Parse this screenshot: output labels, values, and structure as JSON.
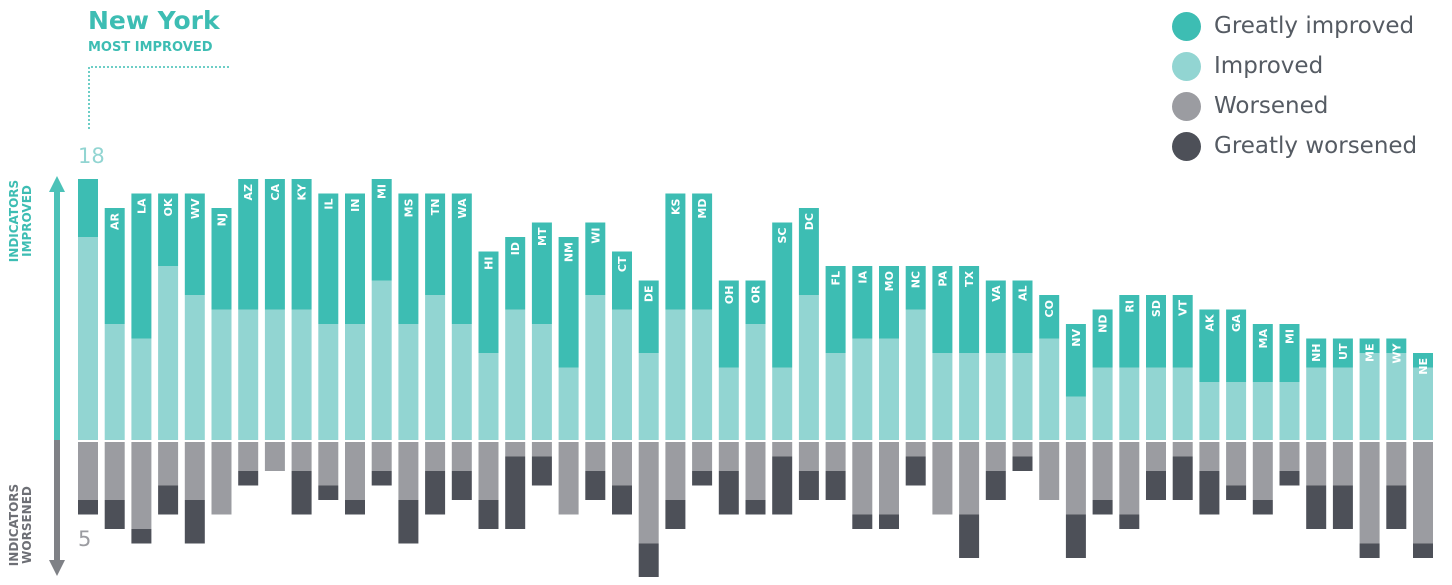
{
  "callout": {
    "name": "New York",
    "subtitle": "MOST IMPROVED"
  },
  "axis": {
    "improved_label": "INDICATORS IMPROVED",
    "worsened_label": "INDICATORS WORSENED",
    "max_improved_label": "18",
    "max_worsened_label": "5"
  },
  "legend": [
    {
      "label": "Greatly improved",
      "color": "#3dbdb3"
    },
    {
      "label": "Improved",
      "color": "#92d5d2"
    },
    {
      "label": "Worsened",
      "color": "#9b9ca1"
    },
    {
      "label": "Greatly worsened",
      "color": "#4d5058"
    }
  ],
  "colors": {
    "greatly_improved": "#3dbdb3",
    "improved": "#92d5d2",
    "worsened": "#9b9ca1",
    "greatly_worsened": "#4d5058",
    "improved_axis": "#4cc2b8",
    "worsened_axis": "#7f8186"
  },
  "chart_data": {
    "type": "bar",
    "stacked": true,
    "units": "indicators",
    "series": [
      {
        "name": "Greatly improved",
        "values": [
          4,
          8,
          10,
          5,
          7,
          7,
          9,
          9,
          9,
          9,
          9,
          7,
          9,
          7,
          9,
          7,
          5,
          7,
          9,
          5,
          4,
          5,
          8,
          8,
          6,
          3,
          10,
          6,
          6,
          5,
          5,
          3,
          6,
          6,
          5,
          5,
          3,
          5,
          4,
          5,
          5,
          5,
          5,
          5,
          4,
          4,
          2,
          2,
          1
        ]
      },
      {
        "name": "Improved",
        "values": [
          14,
          8,
          7,
          12,
          10,
          9,
          9,
          9,
          9,
          8,
          8,
          11,
          8,
          10,
          8,
          6,
          9,
          8,
          5,
          10,
          9,
          6,
          9,
          9,
          5,
          8,
          5,
          10,
          6,
          7,
          7,
          9,
          6,
          6,
          6,
          6,
          7,
          3,
          5,
          5,
          5,
          5,
          4,
          4,
          4,
          4,
          5,
          5,
          6
        ]
      },
      {
        "name": "Worsened",
        "values": [
          4,
          4,
          6,
          3,
          4,
          5,
          2,
          2,
          2,
          3,
          4,
          2,
          4,
          2,
          2,
          4,
          1,
          1,
          5,
          2,
          3,
          7,
          4,
          2,
          2,
          4,
          1,
          2,
          2,
          5,
          5,
          1,
          5,
          5,
          2,
          1,
          4,
          5,
          4,
          5,
          2,
          1,
          2,
          3,
          4,
          2,
          3,
          3,
          7
        ]
      },
      {
        "name": "Greatly worsened",
        "values": [
          1,
          2,
          1,
          2,
          3,
          0,
          1,
          0,
          3,
          1,
          1,
          1,
          3,
          3,
          2,
          2,
          5,
          2,
          0,
          2,
          2,
          3,
          2,
          1,
          3,
          1,
          4,
          2,
          2,
          1,
          1,
          2,
          0,
          3,
          2,
          1,
          0,
          3,
          1,
          1,
          2,
          3,
          3,
          1,
          1,
          1,
          3,
          3,
          1
        ]
      }
    ],
    "categories": [
      "NY",
      "AR",
      "LA",
      "OK",
      "WV",
      "NJ",
      "AZ",
      "CA",
      "KY",
      "IL",
      "IN",
      "MI",
      "MS",
      "TN",
      "WA",
      "HI",
      "ID",
      "MT",
      "NM",
      "WI",
      "CT",
      "DE",
      "KS",
      "MD",
      "OH",
      "OR",
      "SC",
      "DC",
      "FL",
      "IA",
      "MO",
      "NC",
      "PA",
      "TX",
      "VA",
      "AL",
      "CO",
      "NV",
      "ND",
      "RI",
      "SD",
      "VT",
      "AK",
      "GA",
      "MA",
      "MI",
      "NH",
      "UT",
      "ME"
    ],
    "extra_categories": [
      "WY",
      "NE"
    ],
    "extra_series": [
      {
        "name": "Greatly improved",
        "values": [
          1,
          1
        ]
      },
      {
        "name": "Improved",
        "values": [
          6,
          5
        ]
      },
      {
        "name": "Worsened",
        "values": [
          3,
          7
        ]
      },
      {
        "name": "Greatly worsened",
        "values": [
          3,
          1
        ]
      }
    ],
    "ylim_improved": [
      0,
      18
    ],
    "ylim_worsened": [
      0,
      9
    ],
    "grid": false,
    "legend_position": "top-right"
  }
}
